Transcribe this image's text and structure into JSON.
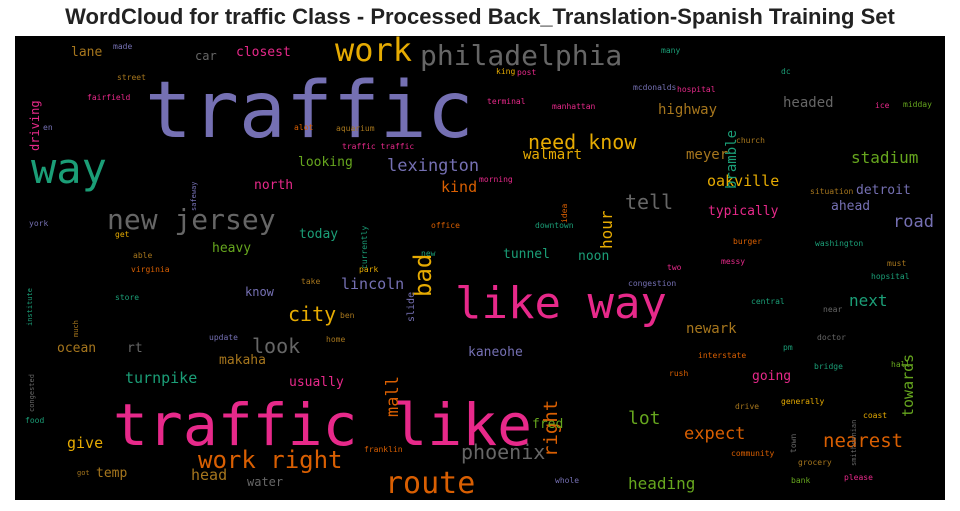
{
  "title": "WordCloud for traffic Class - Processed Back_Translation-Spanish Training Set",
  "colors": {
    "purple": "#7570b3",
    "pink": "#e7298a",
    "green": "#1b9e77",
    "orange": "#d95f02",
    "gold": "#e6ab02",
    "olive": "#66a61e",
    "brown": "#a6761d",
    "gray": "#666666"
  },
  "words": [
    {
      "id": "traffic",
      "text": "traffic"
    },
    {
      "id": "traffic_like",
      "text": "traffic like"
    },
    {
      "id": "like_way",
      "text": "like way"
    },
    {
      "id": "way",
      "text": "way"
    },
    {
      "id": "work",
      "text": "work"
    },
    {
      "id": "philadelphia",
      "text": "philadelphia"
    },
    {
      "id": "new_jersey",
      "text": "new jersey"
    },
    {
      "id": "route",
      "text": "route"
    },
    {
      "id": "work_right",
      "text": "work right"
    },
    {
      "id": "bad",
      "text": "bad"
    },
    {
      "id": "need_know",
      "text": "need know"
    },
    {
      "id": "phoenix",
      "text": "phoenix"
    },
    {
      "id": "nearest",
      "text": "nearest"
    },
    {
      "id": "look",
      "text": "look"
    },
    {
      "id": "city",
      "text": "city"
    },
    {
      "id": "lexington",
      "text": "lexington"
    },
    {
      "id": "tell",
      "text": "tell"
    },
    {
      "id": "expect",
      "text": "expect"
    },
    {
      "id": "right",
      "text": "right"
    },
    {
      "id": "road",
      "text": "road"
    },
    {
      "id": "stadium",
      "text": "stadium"
    },
    {
      "id": "mall",
      "text": "mall"
    },
    {
      "id": "turnpike",
      "text": "turnpike"
    },
    {
      "id": "oakville",
      "text": "oakville"
    },
    {
      "id": "lot",
      "text": "lot"
    },
    {
      "id": "heading",
      "text": "heading"
    },
    {
      "id": "next",
      "text": "next"
    },
    {
      "id": "towards",
      "text": "towards"
    },
    {
      "id": "hour",
      "text": "hour"
    },
    {
      "id": "give",
      "text": "give"
    },
    {
      "id": "kind",
      "text": "kind"
    },
    {
      "id": "lincoln",
      "text": "lincoln"
    },
    {
      "id": "ocean",
      "text": "ocean"
    },
    {
      "id": "temp",
      "text": "temp"
    },
    {
      "id": "head",
      "text": "head"
    },
    {
      "id": "bramble",
      "text": "bramble"
    },
    {
      "id": "highway",
      "text": "highway"
    },
    {
      "id": "headed",
      "text": "headed"
    },
    {
      "id": "walmart",
      "text": "walmart"
    },
    {
      "id": "meyer",
      "text": "meyer"
    },
    {
      "id": "newark",
      "text": "newark"
    },
    {
      "id": "kaneohe",
      "text": "kaneohe"
    },
    {
      "id": "usually",
      "text": "usually"
    },
    {
      "id": "going",
      "text": "going"
    },
    {
      "id": "fred",
      "text": "fred"
    },
    {
      "id": "makaha",
      "text": "makaha"
    },
    {
      "id": "rt",
      "text": "rt"
    },
    {
      "id": "typically",
      "text": "typically"
    },
    {
      "id": "detroit",
      "text": "detroit"
    },
    {
      "id": "ahead",
      "text": "ahead"
    },
    {
      "id": "north",
      "text": "north"
    },
    {
      "id": "looking",
      "text": "looking"
    },
    {
      "id": "today",
      "text": "today"
    },
    {
      "id": "heavy",
      "text": "heavy"
    },
    {
      "id": "know",
      "text": "know"
    },
    {
      "id": "tunnel",
      "text": "tunnel"
    },
    {
      "id": "noon",
      "text": "noon"
    },
    {
      "id": "car",
      "text": "car"
    },
    {
      "id": "closest",
      "text": "closest"
    },
    {
      "id": "lane",
      "text": "lane"
    },
    {
      "id": "driving",
      "text": "driving"
    },
    {
      "id": "water",
      "text": "water"
    },
    {
      "id": "slide",
      "text": "slide"
    },
    {
      "id": "made",
      "text": "made"
    },
    {
      "id": "street",
      "text": "street"
    },
    {
      "id": "fairfield",
      "text": "fairfield"
    },
    {
      "id": "en",
      "text": "en"
    },
    {
      "id": "alot",
      "text": "alot"
    },
    {
      "id": "aquarium",
      "text": "aquarium"
    },
    {
      "id": "traffic_traffic",
      "text": "traffic traffic"
    },
    {
      "id": "safeway",
      "text": "safeway"
    },
    {
      "id": "currently",
      "text": "currently"
    },
    {
      "id": "morning",
      "text": "morning"
    },
    {
      "id": "terminal",
      "text": "terminal"
    },
    {
      "id": "manhattan",
      "text": "manhattan"
    },
    {
      "id": "king",
      "text": "king"
    },
    {
      "id": "post",
      "text": "post"
    },
    {
      "id": "many",
      "text": "many"
    },
    {
      "id": "mcdonalds",
      "text": "mcdonalds"
    },
    {
      "id": "hospital",
      "text": "hospital"
    },
    {
      "id": "dc",
      "text": "dc"
    },
    {
      "id": "ice",
      "text": "ice"
    },
    {
      "id": "midday",
      "text": "midday"
    },
    {
      "id": "church",
      "text": "church"
    },
    {
      "id": "situation",
      "text": "situation"
    },
    {
      "id": "idea",
      "text": "idea"
    },
    {
      "id": "office",
      "text": "office"
    },
    {
      "id": "downtown",
      "text": "downtown"
    },
    {
      "id": "york",
      "text": "york"
    },
    {
      "id": "get",
      "text": "get"
    },
    {
      "id": "able",
      "text": "able"
    },
    {
      "id": "virginia",
      "text": "virginia"
    },
    {
      "id": "institute",
      "text": "institute"
    },
    {
      "id": "store",
      "text": "store"
    },
    {
      "id": "much",
      "text": "much"
    },
    {
      "id": "park",
      "text": "park"
    },
    {
      "id": "take",
      "text": "take"
    },
    {
      "id": "new",
      "text": "new"
    },
    {
      "id": "congestion",
      "text": "congestion"
    },
    {
      "id": "two",
      "text": "two"
    },
    {
      "id": "messy",
      "text": "messy"
    },
    {
      "id": "burger",
      "text": "burger"
    },
    {
      "id": "washington",
      "text": "washington"
    },
    {
      "id": "hopsital",
      "text": "hopsital"
    },
    {
      "id": "must",
      "text": "must"
    },
    {
      "id": "ben",
      "text": "ben"
    },
    {
      "id": "update",
      "text": "update"
    },
    {
      "id": "home",
      "text": "home"
    },
    {
      "id": "central",
      "text": "central"
    },
    {
      "id": "near",
      "text": "near"
    },
    {
      "id": "doctor",
      "text": "doctor"
    },
    {
      "id": "pm",
      "text": "pm"
    },
    {
      "id": "interstate",
      "text": "interstate"
    },
    {
      "id": "bridge",
      "text": "bridge"
    },
    {
      "id": "hall",
      "text": "hall"
    },
    {
      "id": "rush",
      "text": "rush"
    },
    {
      "id": "smithsonian",
      "text": "smithsonian"
    },
    {
      "id": "drive",
      "text": "drive"
    },
    {
      "id": "generally",
      "text": "generally"
    },
    {
      "id": "town",
      "text": "town"
    },
    {
      "id": "coast",
      "text": "coast"
    },
    {
      "id": "congested",
      "text": "congested"
    },
    {
      "id": "food",
      "text": "food"
    },
    {
      "id": "franklin",
      "text": "franklin"
    },
    {
      "id": "community",
      "text": "community"
    },
    {
      "id": "grocery",
      "text": "grocery"
    },
    {
      "id": "got",
      "text": "got"
    },
    {
      "id": "whole",
      "text": "whole"
    },
    {
      "id": "bank",
      "text": "bank"
    },
    {
      "id": "please",
      "text": "please"
    }
  ]
}
